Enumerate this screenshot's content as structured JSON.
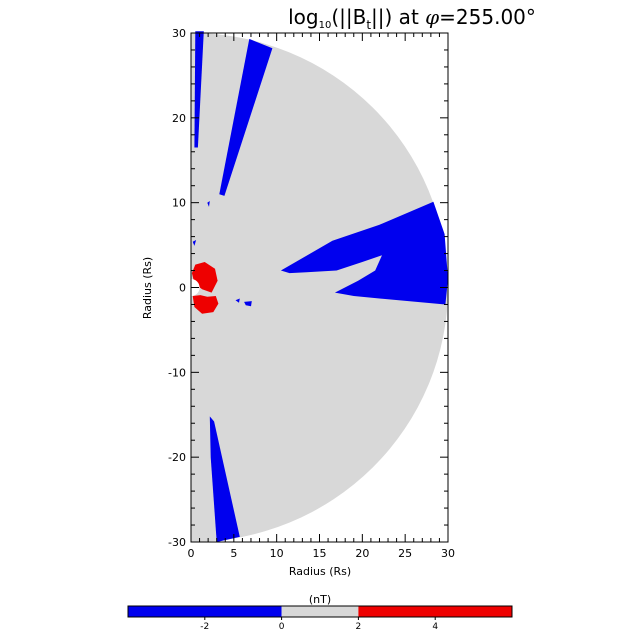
{
  "chart_data": {
    "type": "heatmap",
    "title": {
      "prefix": "log",
      "base": "10",
      "mid": "(||B",
      "sub": "t",
      "suffix": "||) at ",
      "phi": "φ",
      "angle": "=255.00°"
    },
    "xlabel": "Radius (Rs)",
    "ylabel": "Radius (Rs)",
    "xlim": [
      0,
      30
    ],
    "ylim": [
      -30,
      30
    ],
    "xticks": [
      0,
      5,
      10,
      15,
      20,
      25,
      30
    ],
    "yticks": [
      -30,
      -20,
      -10,
      0,
      10,
      20,
      30
    ],
    "domain": {
      "shape": "half-disk",
      "outer_radius": 30,
      "inner_radius": 1,
      "fill_color": "#d8d8d8"
    },
    "regions": [
      {
        "name": "low",
        "color": "#0000ee",
        "polygons": [
          [
            [
              0.5,
              30.2
            ],
            [
              1.5,
              30.2
            ],
            [
              0.8,
              16.5
            ],
            [
              0.4,
              16.5
            ]
          ],
          [
            [
              6.8,
              29.3
            ],
            [
              9.5,
              28.2
            ],
            [
              3.9,
              10.8
            ],
            [
              3.3,
              11.0
            ]
          ],
          [
            [
              10.5,
              2.0
            ],
            [
              16.5,
              5.5
            ],
            [
              22.0,
              7.4
            ],
            [
              28.3,
              10.1
            ],
            [
              29.6,
              6.3
            ],
            [
              30.0,
              1.0
            ],
            [
              29.7,
              -2.0
            ],
            [
              22.0,
              -1.3
            ],
            [
              19.0,
              -1.0
            ],
            [
              16.8,
              -0.6
            ],
            [
              19.5,
              0.8
            ],
            [
              21.5,
              2.0
            ],
            [
              22.3,
              3.8
            ],
            [
              20.0,
              3.0
            ],
            [
              17.0,
              2.0
            ],
            [
              13.5,
              1.8
            ],
            [
              11.5,
              1.7
            ]
          ],
          [
            [
              2.2,
              -15.2
            ],
            [
              2.7,
              -15.8
            ],
            [
              5.7,
              -29.4
            ],
            [
              3.0,
              -30.0
            ],
            [
              2.3,
              -20.0
            ]
          ],
          [
            [
              1.9,
              10.0
            ],
            [
              2.2,
              10.2
            ],
            [
              2.1,
              9.5
            ]
          ],
          [
            [
              0.2,
              5.4
            ],
            [
              0.6,
              5.6
            ],
            [
              0.4,
              4.9
            ]
          ],
          [
            [
              6.2,
              -1.7
            ],
            [
              7.1,
              -1.6
            ],
            [
              7.0,
              -2.2
            ],
            [
              6.4,
              -2.1
            ]
          ],
          [
            [
              5.2,
              -1.5
            ],
            [
              5.7,
              -1.3
            ],
            [
              5.6,
              -1.8
            ]
          ]
        ]
      },
      {
        "name": "high",
        "color": "#ee0000",
        "polygons": [
          [
            [
              0.1,
              1.7
            ],
            [
              0.5,
              2.7
            ],
            [
              1.6,
              3.0
            ],
            [
              2.8,
              2.2
            ],
            [
              3.1,
              0.8
            ],
            [
              2.4,
              -0.6
            ],
            [
              1.3,
              -0.2
            ],
            [
              0.4,
              0.5
            ]
          ],
          [
            [
              0.2,
              -1.0
            ],
            [
              0.4,
              -2.3
            ],
            [
              1.3,
              -3.1
            ],
            [
              2.6,
              -2.9
            ],
            [
              3.2,
              -1.9
            ],
            [
              2.9,
              -1.0
            ],
            [
              1.9,
              -1.1
            ],
            [
              1.1,
              -0.9
            ]
          ]
        ]
      }
    ],
    "colorbar": {
      "title": "(nT)",
      "range": [
        -4,
        6
      ],
      "ticks": [
        -2,
        0,
        2,
        4
      ],
      "bands": [
        {
          "from": -4,
          "to": 0,
          "color": "#0000ee"
        },
        {
          "from": 0,
          "to": 2,
          "color": "#d8d8d8"
        },
        {
          "from": 2,
          "to": 6,
          "color": "#ee0000"
        }
      ]
    }
  }
}
